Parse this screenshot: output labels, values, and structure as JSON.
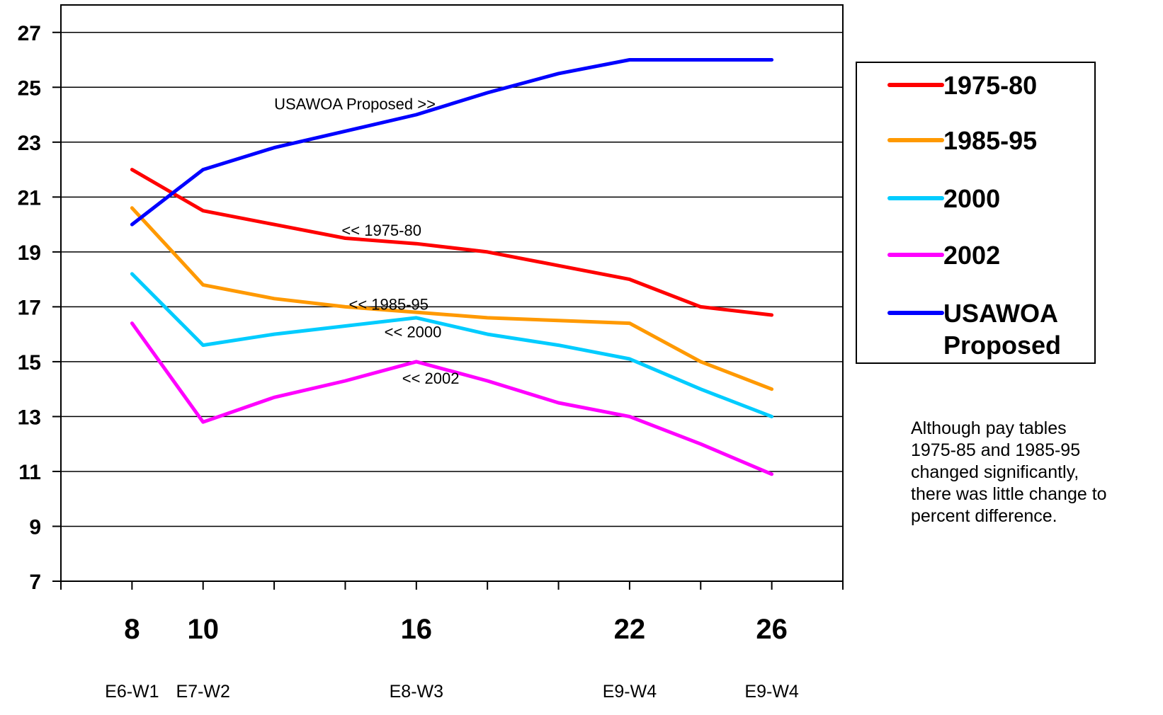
{
  "chart_data": {
    "type": "line",
    "title": "",
    "xlabel": "",
    "ylabel": "",
    "ylim": [
      7,
      27
    ],
    "y_ticks": [
      7,
      9,
      11,
      13,
      15,
      17,
      19,
      21,
      23,
      25,
      27
    ],
    "xlim": [
      6,
      28
    ],
    "x": [
      8,
      10,
      12,
      14,
      16,
      18,
      20,
      22,
      24,
      26
    ],
    "x_major_labels": [
      {
        "x": 8,
        "value": "8",
        "grade": "E6-W1"
      },
      {
        "x": 10,
        "value": "10",
        "grade": "E7-W2"
      },
      {
        "x": 16,
        "value": "16",
        "grade": "E8-W3"
      },
      {
        "x": 22,
        "value": "22",
        "grade": "E9-W4"
      },
      {
        "x": 26,
        "value": "26",
        "grade": "E9-W4"
      }
    ],
    "grid": true,
    "legend_position": "right",
    "series": [
      {
        "name": "1975-80",
        "color": "#ff0000",
        "values": [
          22.0,
          20.5,
          20.0,
          19.5,
          19.3,
          19.0,
          18.5,
          18.0,
          17.0,
          16.7
        ]
      },
      {
        "name": "1985-95",
        "color": "#ff9900",
        "values": [
          20.6,
          17.8,
          17.3,
          17.0,
          16.8,
          16.6,
          16.5,
          16.4,
          15.0,
          14.0
        ]
      },
      {
        "name": "2000",
        "color": "#00ccff",
        "values": [
          18.2,
          15.6,
          16.0,
          16.3,
          16.6,
          16.0,
          15.6,
          15.1,
          14.0,
          13.0
        ]
      },
      {
        "name": "2002",
        "color": "#ff00ff",
        "values": [
          16.4,
          12.8,
          13.7,
          14.3,
          15.0,
          14.3,
          13.5,
          13.0,
          12.0,
          10.9
        ]
      },
      {
        "name": "USAWOA Proposed",
        "color": "#0000ff",
        "values": [
          20.0,
          22.0,
          22.8,
          23.4,
          24.0,
          24.8,
          25.5,
          26.0,
          26.0,
          26.0
        ]
      }
    ],
    "annotations": [
      {
        "text": "USAWOA Proposed >>",
        "x": 12.0,
        "y": 24.4
      },
      {
        "text": "<< 1975-80",
        "x": 13.9,
        "y": 19.8
      },
      {
        "text": "<< 1985-95",
        "x": 14.1,
        "y": 17.1
      },
      {
        "text": "<< 2000",
        "x": 15.1,
        "y": 16.1
      },
      {
        "text": "<< 2002",
        "x": 15.6,
        "y": 14.4
      }
    ],
    "note_lines": [
      "Although pay tables",
      "1975-85 and 1985-95",
      "changed significantly,",
      "there was little change to",
      "percent difference."
    ]
  }
}
